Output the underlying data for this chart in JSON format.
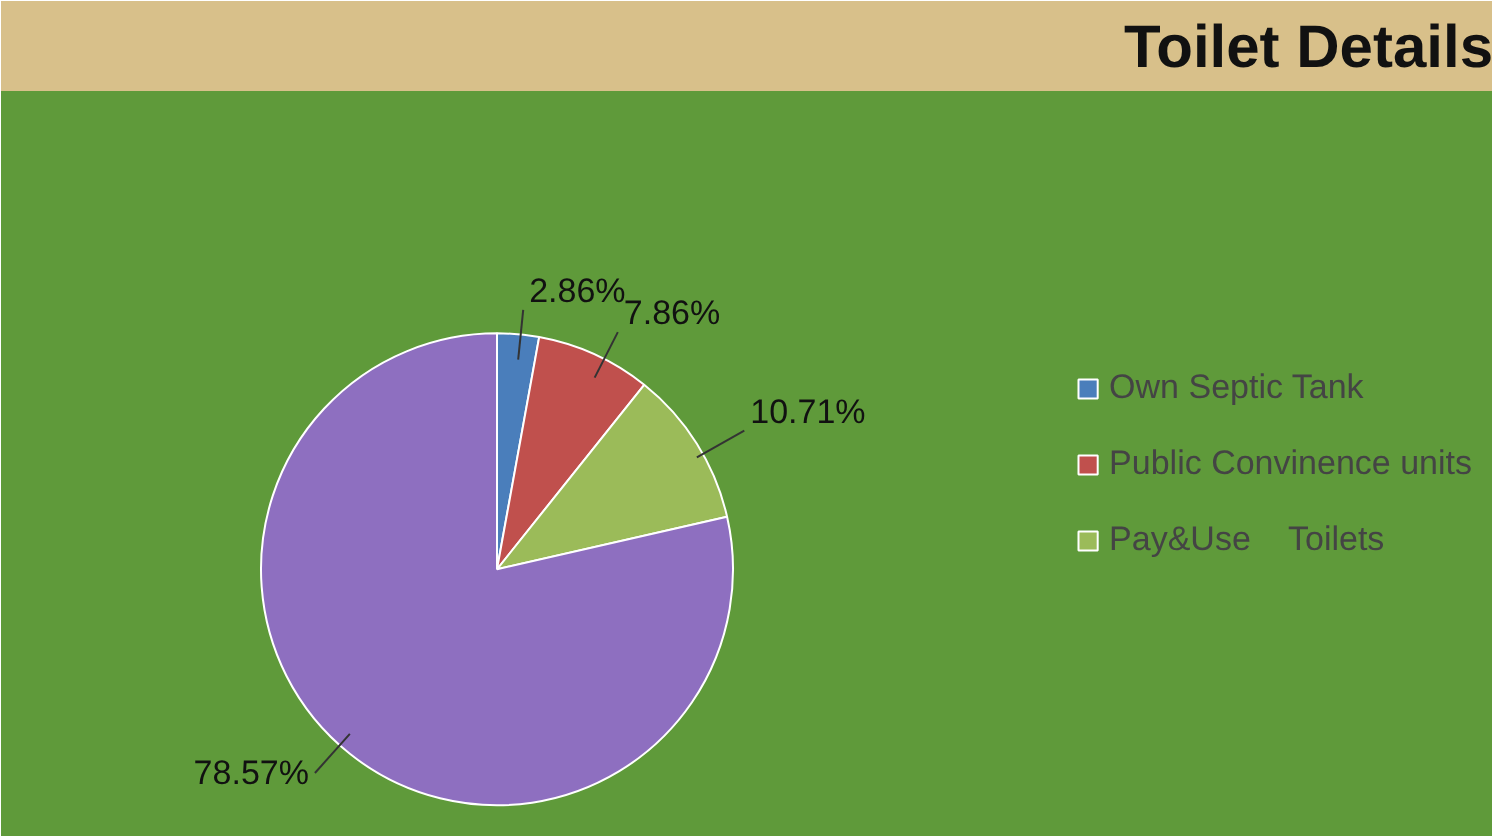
{
  "chart_data": {
    "type": "pie",
    "title": "Toilet Details",
    "categories": [
      "Own Septic Tank",
      "Public Convinence units",
      "Pay&Use    Toilets",
      null
    ],
    "values": [
      2.86,
      7.86,
      10.71,
      78.57
    ],
    "colors": [
      "#4a7ebb",
      "#c0504d",
      "#9bbb59",
      "#8e6fc0"
    ],
    "value_labels": [
      "2.86%",
      "7.86%",
      "10.71%",
      "78.57%"
    ],
    "legend": "right"
  }
}
